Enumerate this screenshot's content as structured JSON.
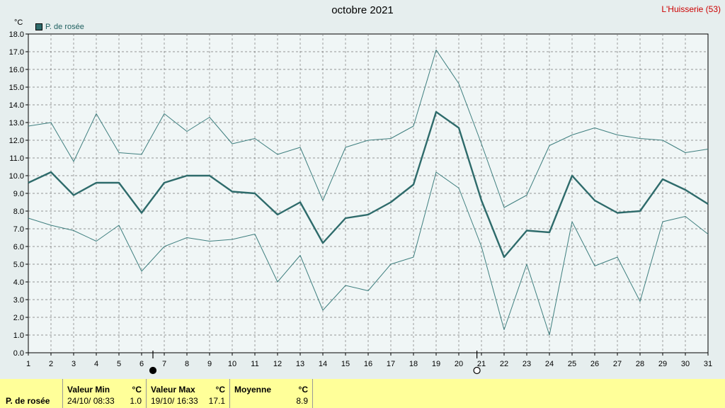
{
  "title": "octobre 2021",
  "station": "L'Huisserie (53)",
  "unit": "°C",
  "legend_label": "P. de rosée",
  "colors": {
    "series": "#2e6b6b",
    "thin": "#3f7f7f",
    "grid": "#777777",
    "station": "#cc0000",
    "footer_bg": "#ffff99"
  },
  "moon_phases": [
    {
      "day": 6.5,
      "icon": "new-moon-icon"
    },
    {
      "day": 20.8,
      "icon": "full-moon-icon"
    }
  ],
  "chart_data": {
    "type": "line",
    "x": [
      1,
      2,
      3,
      4,
      5,
      6,
      7,
      8,
      9,
      10,
      11,
      12,
      13,
      14,
      15,
      16,
      17,
      18,
      19,
      20,
      21,
      22,
      23,
      24,
      25,
      26,
      27,
      28,
      29,
      30,
      31
    ],
    "xlim": [
      1,
      31
    ],
    "ylim": [
      0,
      18
    ],
    "ytick_step": 1,
    "ylabel": "°C",
    "grid": true,
    "legend_position": "top-left",
    "series": [
      {
        "name": "P. de rosée",
        "role": "mean",
        "values": [
          9.6,
          10.2,
          8.9,
          9.6,
          9.6,
          7.9,
          9.6,
          10.0,
          10.0,
          9.1,
          9.0,
          7.8,
          8.5,
          6.2,
          7.6,
          7.8,
          8.5,
          9.5,
          13.6,
          12.7,
          8.6,
          5.4,
          6.9,
          6.8,
          10.0,
          8.6,
          7.9,
          8.0,
          9.8,
          9.2,
          8.4
        ]
      },
      {
        "role": "max",
        "values": [
          12.8,
          13.0,
          10.8,
          13.5,
          11.3,
          11.2,
          13.5,
          12.5,
          13.3,
          11.8,
          12.1,
          11.2,
          11.6,
          8.6,
          11.6,
          12.0,
          12.1,
          12.8,
          17.1,
          15.2,
          11.8,
          8.2,
          8.9,
          11.7,
          12.3,
          12.7,
          12.3,
          12.1,
          12.0,
          11.3,
          11.5
        ]
      },
      {
        "role": "min",
        "values": [
          7.6,
          7.2,
          6.9,
          6.3,
          7.2,
          4.6,
          6.0,
          6.5,
          6.3,
          6.4,
          6.7,
          4.0,
          5.5,
          2.4,
          3.8,
          3.5,
          5.0,
          5.4,
          10.2,
          9.3,
          6.0,
          1.3,
          5.0,
          1.0,
          7.4,
          4.9,
          5.4,
          2.9,
          7.4,
          7.7,
          6.7
        ]
      }
    ]
  },
  "summary": {
    "row_label": "P. de rosée",
    "min": {
      "header": "Valeur Min",
      "unit": "°C",
      "datetime": "24/10/ 08:33",
      "value": "1.0"
    },
    "max": {
      "header": "Valeur Max",
      "unit": "°C",
      "datetime": "19/10/ 16:33",
      "value": "17.1"
    },
    "avg": {
      "header": "Moyenne",
      "unit": "°C",
      "value": "8.9"
    }
  }
}
